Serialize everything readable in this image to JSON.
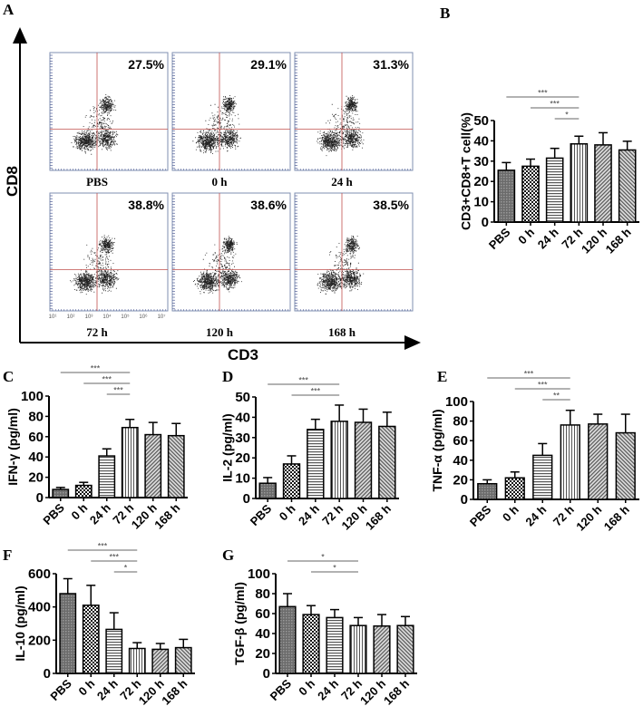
{
  "panel_a": {
    "label": "A",
    "y_axis": "CD8",
    "x_axis": "CD3",
    "plots": [
      {
        "label": "PBS",
        "percent": "27.5%"
      },
      {
        "label": "0 h",
        "percent": "29.1%"
      },
      {
        "label": "24 h",
        "percent": "31.3%"
      },
      {
        "label": "72 h",
        "percent": "38.8%"
      },
      {
        "label": "120 h",
        "percent": "38.6%"
      },
      {
        "label": "168 h",
        "percent": "38.5%"
      }
    ],
    "log_ticks": [
      "10¹",
      "10²",
      "10³",
      "10⁴",
      "10⁵",
      "10⁶",
      "10⁷"
    ],
    "colors": {
      "quadrant": "#c0504d",
      "frame": "#7f8fb0",
      "dots": "#222222"
    }
  },
  "chart_data": [
    {
      "type": "bar",
      "panel": "B",
      "ylabel": "CD3+CD8+T cell(%)",
      "ylim": [
        0,
        50
      ],
      "yticks": [
        0,
        10,
        20,
        30,
        40,
        50
      ],
      "categories": [
        "PBS",
        "0 h",
        "24 h",
        "72 h",
        "120 h",
        "168 h"
      ],
      "values": [
        25.5,
        27.5,
        31.5,
        38.5,
        38,
        35.5
      ],
      "errors": [
        3.8,
        3.5,
        4.8,
        3.8,
        6,
        4.3
      ],
      "significance": [
        {
          "from": 0,
          "to": 3,
          "label": "***"
        },
        {
          "from": 1,
          "to": 3,
          "label": "***"
        },
        {
          "from": 2,
          "to": 3,
          "label": "*"
        }
      ]
    },
    {
      "type": "bar",
      "panel": "C",
      "ylabel": "IFN-γ  (pg/ml)",
      "ylim": [
        0,
        100
      ],
      "yticks": [
        0,
        20,
        40,
        60,
        80,
        100
      ],
      "categories": [
        "PBS",
        "0 h",
        "24 h",
        "72 h",
        "120 h",
        "168 h"
      ],
      "values": [
        8,
        12,
        41,
        69,
        62,
        61
      ],
      "errors": [
        2,
        3,
        7,
        8,
        12,
        12
      ],
      "significance": [
        {
          "from": 0,
          "to": 3,
          "label": "***"
        },
        {
          "from": 1,
          "to": 3,
          "label": "***"
        },
        {
          "from": 2,
          "to": 3,
          "label": "***"
        }
      ]
    },
    {
      "type": "bar",
      "panel": "D",
      "ylabel": "IL-2 (pg/ml)",
      "ylim": [
        0,
        50
      ],
      "yticks": [
        0,
        10,
        20,
        30,
        40,
        50
      ],
      "categories": [
        "PBS",
        "0 h",
        "24 h",
        "72 h",
        "120 h",
        "168 h"
      ],
      "values": [
        7.5,
        17,
        34,
        38,
        37.5,
        35.5
      ],
      "errors": [
        2.8,
        4,
        5,
        8,
        6.5,
        7
      ],
      "significance": [
        {
          "from": 0,
          "to": 3,
          "label": "***"
        },
        {
          "from": 1,
          "to": 3,
          "label": "***"
        }
      ]
    },
    {
      "type": "bar",
      "panel": "E",
      "ylabel": "TNF-α  (pg/ml)",
      "ylim": [
        0,
        100
      ],
      "yticks": [
        0,
        20,
        40,
        60,
        80,
        100
      ],
      "categories": [
        "PBS",
        "0 h",
        "24 h",
        "72 h",
        "120 h",
        "168 h"
      ],
      "values": [
        16,
        22,
        45,
        76,
        77,
        68
      ],
      "errors": [
        4,
        6,
        12,
        15,
        10,
        19
      ],
      "significance": [
        {
          "from": 0,
          "to": 3,
          "label": "***"
        },
        {
          "from": 1,
          "to": 3,
          "label": "***"
        },
        {
          "from": 2,
          "to": 3,
          "label": "**"
        }
      ]
    },
    {
      "type": "bar",
      "panel": "F",
      "ylabel": "IL-10 (pg/ml)",
      "ylim": [
        0,
        600
      ],
      "yticks": [
        0,
        200,
        400,
        600
      ],
      "categories": [
        "PBS",
        "0 h",
        "24 h",
        "72 h",
        "120 h",
        "168 h"
      ],
      "values": [
        480,
        410,
        265,
        150,
        145,
        155
      ],
      "errors": [
        90,
        120,
        100,
        35,
        35,
        50
      ],
      "significance": [
        {
          "from": 0,
          "to": 3,
          "label": "***"
        },
        {
          "from": 1,
          "to": 3,
          "label": "***"
        },
        {
          "from": 2,
          "to": 3,
          "label": "*"
        }
      ]
    },
    {
      "type": "bar",
      "panel": "G",
      "ylabel": "TGF-β (pg/ml)",
      "ylim": [
        0,
        100
      ],
      "yticks": [
        0,
        20,
        40,
        60,
        80,
        100
      ],
      "categories": [
        "PBS",
        "0 h",
        "24 h",
        "72 h",
        "120 h",
        "168 h"
      ],
      "values": [
        67,
        59,
        56,
        48,
        47.5,
        48
      ],
      "errors": [
        13,
        9,
        8,
        8,
        11.5,
        9
      ],
      "significance": [
        {
          "from": 0,
          "to": 3,
          "label": "*"
        },
        {
          "from": 1,
          "to": 3,
          "label": "*"
        }
      ]
    }
  ]
}
